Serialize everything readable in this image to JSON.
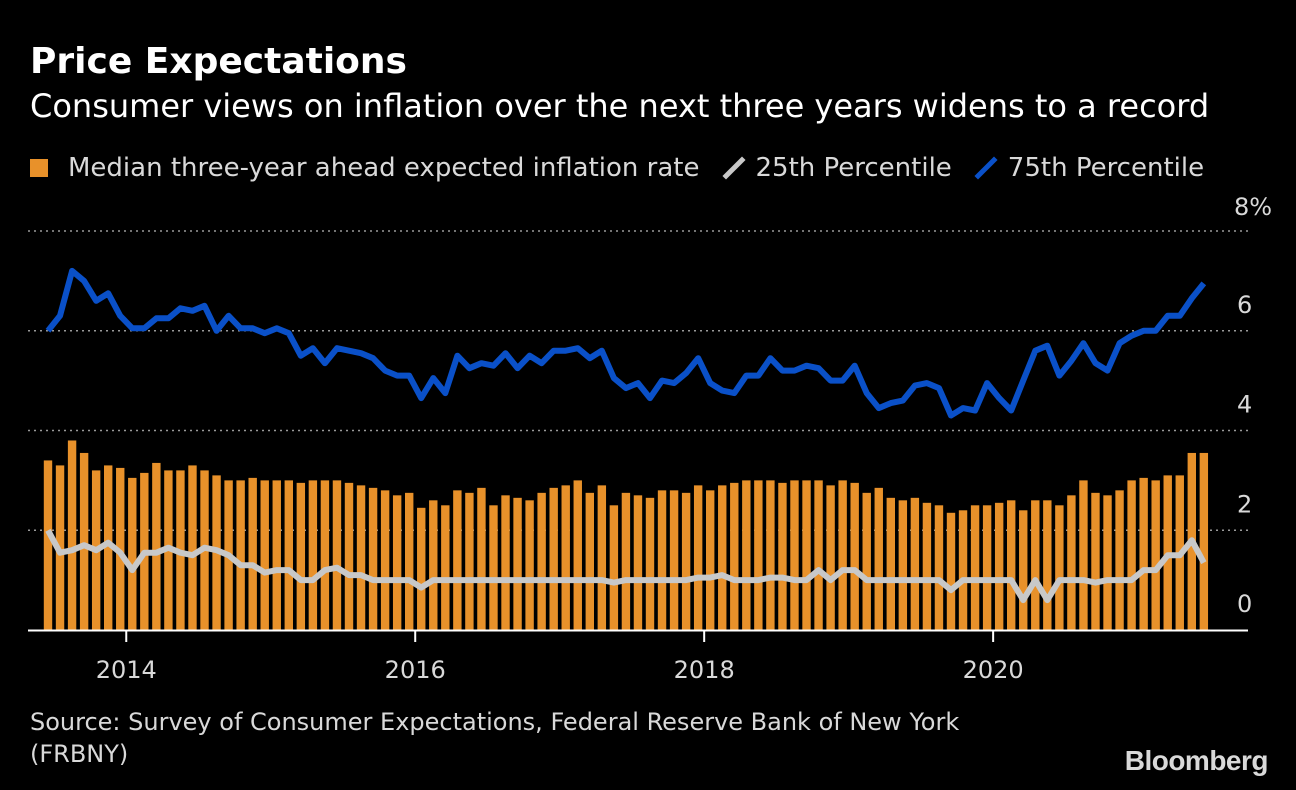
{
  "title": "Price Expectations",
  "subtitle": "Consumer views on inflation over the next three years widens to a record",
  "source": "Source: Survey of Consumer Expectations, Federal Reserve Bank of New York (FRBNY)",
  "brand": "Bloomberg",
  "colors": {
    "bar": "#e8912a",
    "p25": "#c8c8c8",
    "p75": "#0a50c8",
    "grid": "#9a9a9a",
    "axis": "#ffffff"
  },
  "chart_data": {
    "type": "bar",
    "title": "Price Expectations",
    "subtitle": "Consumer views on inflation over the next three years widens to a record",
    "y_unit": "%",
    "ylim": [
      0,
      8
    ],
    "y_ticks": [
      0,
      2,
      4,
      6,
      8
    ],
    "y_tick_labels": [
      "0",
      "2",
      "4",
      "6",
      "8%"
    ],
    "x_tick_labels": [
      "2014",
      "2016",
      "2018",
      "2020"
    ],
    "grid": true,
    "legend_position": "top",
    "x_start": "2013-06",
    "x": [
      "2013-06",
      "2013-07",
      "2013-08",
      "2013-09",
      "2013-10",
      "2013-11",
      "2013-12",
      "2014-01",
      "2014-02",
      "2014-03",
      "2014-04",
      "2014-05",
      "2014-06",
      "2014-07",
      "2014-08",
      "2014-09",
      "2014-10",
      "2014-11",
      "2014-12",
      "2015-01",
      "2015-02",
      "2015-03",
      "2015-04",
      "2015-05",
      "2015-06",
      "2015-07",
      "2015-08",
      "2015-09",
      "2015-10",
      "2015-11",
      "2015-12",
      "2016-01",
      "2016-02",
      "2016-03",
      "2016-04",
      "2016-05",
      "2016-06",
      "2016-07",
      "2016-08",
      "2016-09",
      "2016-10",
      "2016-11",
      "2016-12",
      "2017-01",
      "2017-02",
      "2017-03",
      "2017-04",
      "2017-05",
      "2017-06",
      "2017-07",
      "2017-08",
      "2017-09",
      "2017-10",
      "2017-11",
      "2017-12",
      "2018-01",
      "2018-02",
      "2018-03",
      "2018-04",
      "2018-05",
      "2018-06",
      "2018-07",
      "2018-08",
      "2018-09",
      "2018-10",
      "2018-11",
      "2018-12",
      "2019-01",
      "2019-02",
      "2019-03",
      "2019-04",
      "2019-05",
      "2019-06",
      "2019-07",
      "2019-08",
      "2019-09",
      "2019-10",
      "2019-11",
      "2019-12",
      "2020-01",
      "2020-02",
      "2020-03",
      "2020-04",
      "2020-05",
      "2020-06",
      "2020-07",
      "2020-08",
      "2020-09",
      "2020-10",
      "2020-11",
      "2020-12",
      "2021-01",
      "2021-02",
      "2021-03",
      "2021-04",
      "2021-05",
      "2021-06"
    ],
    "series": [
      {
        "name": "Median three-year ahead expected inflation rate",
        "type": "bar",
        "values": [
          3.4,
          3.3,
          3.8,
          3.55,
          3.2,
          3.3,
          3.25,
          3.05,
          3.15,
          3.35,
          3.2,
          3.2,
          3.3,
          3.2,
          3.1,
          3.0,
          3.0,
          3.05,
          3.0,
          3.0,
          3.0,
          2.95,
          3.0,
          3.0,
          3.0,
          2.95,
          2.9,
          2.85,
          2.8,
          2.7,
          2.75,
          2.45,
          2.6,
          2.5,
          2.8,
          2.75,
          2.85,
          2.5,
          2.7,
          2.65,
          2.6,
          2.75,
          2.85,
          2.9,
          3.0,
          2.75,
          2.9,
          2.5,
          2.75,
          2.7,
          2.65,
          2.8,
          2.8,
          2.75,
          2.9,
          2.8,
          2.9,
          2.95,
          3.0,
          3.0,
          3.0,
          2.95,
          3.0,
          3.0,
          3.0,
          2.9,
          3.0,
          2.95,
          2.75,
          2.85,
          2.65,
          2.6,
          2.65,
          2.55,
          2.5,
          2.35,
          2.4,
          2.5,
          2.5,
          2.55,
          2.6,
          2.4,
          2.6,
          2.6,
          2.5,
          2.7,
          3.0,
          2.75,
          2.7,
          2.8,
          3.0,
          3.05,
          3.0,
          3.1,
          3.1,
          3.55,
          3.55
        ]
      },
      {
        "name": "25th Percentile",
        "type": "line",
        "values": [
          2.0,
          1.55,
          1.6,
          1.7,
          1.6,
          1.75,
          1.55,
          1.2,
          1.55,
          1.55,
          1.65,
          1.55,
          1.5,
          1.65,
          1.6,
          1.5,
          1.3,
          1.3,
          1.15,
          1.2,
          1.2,
          1.0,
          1.0,
          1.2,
          1.25,
          1.1,
          1.1,
          1.0,
          1.0,
          1.0,
          1.0,
          0.85,
          1.0,
          1.0,
          1.0,
          1.0,
          1.0,
          1.0,
          1.0,
          1.0,
          1.0,
          1.0,
          1.0,
          1.0,
          1.0,
          1.0,
          1.0,
          0.95,
          1.0,
          1.0,
          1.0,
          1.0,
          1.0,
          1.0,
          1.05,
          1.05,
          1.1,
          1.0,
          1.0,
          1.0,
          1.05,
          1.05,
          1.0,
          1.0,
          1.2,
          1.0,
          1.2,
          1.2,
          1.0,
          1.0,
          1.0,
          1.0,
          1.0,
          1.0,
          1.0,
          0.8,
          1.0,
          1.0,
          1.0,
          1.0,
          1.0,
          0.6,
          1.0,
          0.6,
          1.0,
          1.0,
          1.0,
          0.95,
          1.0,
          1.0,
          1.0,
          1.2,
          1.2,
          1.5,
          1.5,
          1.8,
          1.35
        ]
      },
      {
        "name": "75th Percentile",
        "type": "line",
        "values": [
          6.0,
          6.3,
          7.2,
          7.0,
          6.6,
          6.75,
          6.3,
          6.05,
          6.05,
          6.25,
          6.25,
          6.45,
          6.4,
          6.5,
          6.0,
          6.3,
          6.05,
          6.05,
          5.95,
          6.05,
          5.95,
          5.5,
          5.65,
          5.35,
          5.65,
          5.6,
          5.55,
          5.45,
          5.2,
          5.1,
          5.1,
          4.65,
          5.05,
          4.75,
          5.5,
          5.25,
          5.35,
          5.3,
          5.55,
          5.25,
          5.5,
          5.35,
          5.6,
          5.6,
          5.65,
          5.45,
          5.6,
          5.05,
          4.85,
          4.95,
          4.65,
          5.0,
          4.95,
          5.15,
          5.45,
          4.95,
          4.8,
          4.75,
          5.1,
          5.1,
          5.45,
          5.2,
          5.2,
          5.3,
          5.25,
          5.0,
          5.0,
          5.3,
          4.75,
          4.45,
          4.55,
          4.6,
          4.9,
          4.95,
          4.85,
          4.3,
          4.45,
          4.4,
          4.95,
          4.65,
          4.4,
          5.0,
          5.6,
          5.7,
          5.1,
          5.4,
          5.75,
          5.35,
          5.2,
          5.75,
          5.9,
          6.0,
          6.0,
          6.3,
          6.3,
          6.65,
          6.95
        ]
      }
    ]
  }
}
